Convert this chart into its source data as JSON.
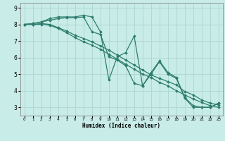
{
  "xlabel": "Humidex (Indice chaleur)",
  "background_color": "#c8ece8",
  "grid_color": "#b0d8d4",
  "line_color": "#2e7d6e",
  "xlim": [
    -0.5,
    23.5
  ],
  "ylim": [
    2.5,
    9.3
  ],
  "yticks": [
    3,
    4,
    5,
    6,
    7,
    8,
    9
  ],
  "xticks": [
    0,
    1,
    2,
    3,
    4,
    5,
    6,
    7,
    8,
    9,
    10,
    11,
    12,
    13,
    14,
    15,
    16,
    17,
    18,
    19,
    20,
    21,
    22,
    23
  ],
  "series": [
    {
      "x": [
        0,
        1,
        2,
        3,
        4,
        5,
        6,
        7,
        8,
        9,
        10,
        11,
        12,
        13,
        14,
        15,
        16,
        17,
        18,
        19,
        20,
        21,
        22,
        23
      ],
      "y": [
        8.0,
        8.05,
        8.15,
        8.35,
        8.45,
        8.45,
        8.45,
        8.55,
        8.45,
        7.55,
        4.65,
        6.05,
        6.3,
        7.3,
        4.3,
        5.1,
        5.8,
        5.1,
        4.8,
        3.6,
        3.1,
        3.0,
        3.0,
        3.25
      ]
    },
    {
      "x": [
        0,
        1,
        2,
        3,
        4,
        5,
        6,
        7,
        8,
        9,
        10,
        11,
        12,
        13,
        14,
        15,
        16,
        17,
        18,
        19,
        20,
        21,
        22,
        23
      ],
      "y": [
        8.0,
        8.05,
        8.15,
        8.25,
        8.35,
        8.4,
        8.4,
        8.45,
        7.55,
        7.4,
        6.05,
        5.85,
        5.5,
        4.45,
        4.3,
        5.0,
        5.75,
        5.0,
        4.75,
        3.55,
        3.0,
        3.0,
        3.0,
        3.25
      ]
    },
    {
      "x": [
        0,
        1,
        2,
        3,
        4,
        5,
        6,
        7,
        8,
        9,
        10,
        11,
        12,
        13,
        14,
        15,
        16,
        17,
        18,
        19,
        20,
        21,
        22,
        23
      ],
      "y": [
        8.0,
        8.0,
        8.05,
        8.0,
        7.8,
        7.6,
        7.35,
        7.15,
        6.95,
        6.7,
        6.45,
        6.15,
        5.85,
        5.55,
        5.25,
        4.95,
        4.75,
        4.55,
        4.35,
        3.95,
        3.75,
        3.45,
        3.25,
        3.15
      ]
    },
    {
      "x": [
        0,
        1,
        2,
        3,
        4,
        5,
        6,
        7,
        8,
        9,
        10,
        11,
        12,
        13,
        14,
        15,
        16,
        17,
        18,
        19,
        20,
        21,
        22,
        23
      ],
      "y": [
        8.0,
        8.0,
        8.0,
        7.95,
        7.75,
        7.5,
        7.2,
        6.95,
        6.75,
        6.5,
        6.2,
        5.9,
        5.6,
        5.3,
        5.0,
        4.8,
        4.5,
        4.3,
        4.0,
        3.75,
        3.5,
        3.3,
        3.1,
        3.0
      ]
    }
  ]
}
